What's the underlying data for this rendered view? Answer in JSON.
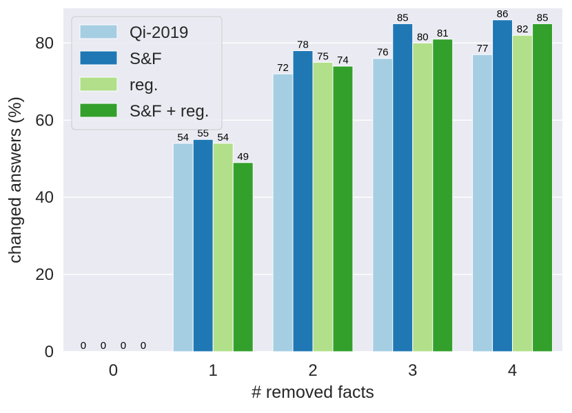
{
  "colors": {
    "background": "#eaeaf2",
    "grid": "#ffffff",
    "text": "#262626"
  },
  "chart_data": {
    "type": "bar",
    "title": "",
    "xlabel": "# removed facts",
    "ylabel": "changed answers (%)",
    "categories": [
      "0",
      "1",
      "2",
      "3",
      "4"
    ],
    "ylim": [
      0,
      89
    ],
    "yticks": [
      0,
      20,
      40,
      60,
      80
    ],
    "grid": true,
    "legend_position": "top-left",
    "series": [
      {
        "name": "Qi-2019",
        "color": "#a6cee3",
        "values": [
          0,
          54,
          72,
          76,
          77
        ]
      },
      {
        "name": "S&F",
        "color": "#1f78b4",
        "values": [
          0,
          55,
          78,
          85,
          86
        ]
      },
      {
        "name": "reg.",
        "color": "#b2df8a",
        "values": [
          0,
          54,
          75,
          80,
          82
        ]
      },
      {
        "name": "S&F + reg.",
        "color": "#33a02c",
        "values": [
          0,
          49,
          74,
          81,
          85
        ]
      }
    ]
  }
}
